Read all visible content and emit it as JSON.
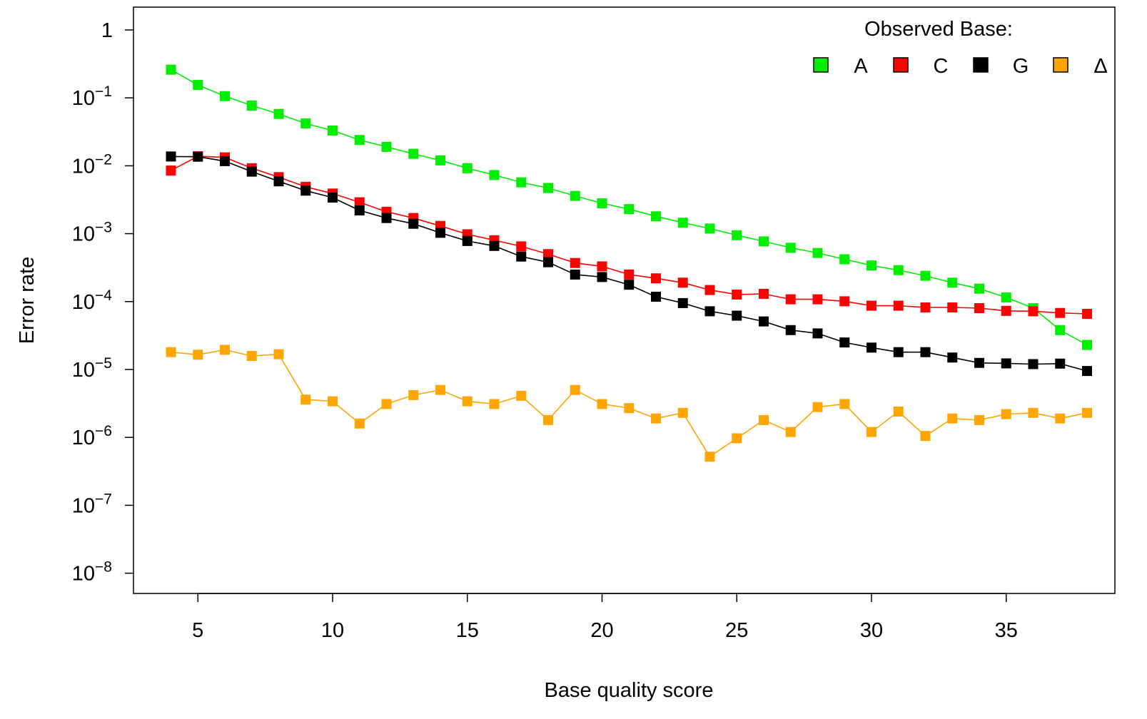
{
  "chart_data": {
    "type": "line",
    "title": "",
    "xlabel": "Base quality score",
    "ylabel": "Error rate",
    "y_scale": "log10",
    "xlim": [
      3.5,
      38.5
    ],
    "ylim": [
      1e-08,
      1
    ],
    "x_ticks": [
      5,
      10,
      15,
      20,
      25,
      30,
      35
    ],
    "y_ticks": [
      {
        "value": 1,
        "base": "1",
        "exp": ""
      },
      {
        "value": 0.1,
        "base": "10",
        "exp": "−1"
      },
      {
        "value": 0.01,
        "base": "10",
        "exp": "−2"
      },
      {
        "value": 0.001,
        "base": "10",
        "exp": "−3"
      },
      {
        "value": 0.0001,
        "base": "10",
        "exp": "−4"
      },
      {
        "value": 1e-05,
        "base": "10",
        "exp": "−5"
      },
      {
        "value": 1e-06,
        "base": "10",
        "exp": "−6"
      },
      {
        "value": 1e-07,
        "base": "10",
        "exp": "−7"
      },
      {
        "value": 1e-08,
        "base": "10",
        "exp": "−8"
      }
    ],
    "grid": false,
    "legend": {
      "title": "Observed Base:",
      "placement": "top-right",
      "orientation": "horizontal"
    },
    "x": [
      4,
      5,
      6,
      7,
      8,
      9,
      10,
      11,
      12,
      13,
      14,
      15,
      16,
      17,
      18,
      19,
      20,
      21,
      22,
      23,
      24,
      25,
      26,
      27,
      28,
      29,
      30,
      31,
      32,
      33,
      34,
      35,
      36,
      37,
      38
    ],
    "series": [
      {
        "name": "A",
        "color": "#00ee00",
        "marker": "square",
        "values": [
          0.26,
          0.155,
          0.106,
          0.077,
          0.058,
          0.042,
          0.033,
          0.024,
          0.019,
          0.015,
          0.012,
          0.0092,
          0.0073,
          0.0057,
          0.0047,
          0.0036,
          0.0028,
          0.0023,
          0.0018,
          0.00145,
          0.00119,
          0.00095,
          0.00077,
          0.00062,
          0.00052,
          0.00042,
          0.00034,
          0.00029,
          0.00024,
          0.00019,
          0.000155,
          0.000115,
          8e-05,
          3.8e-05,
          2.3e-05
        ]
      },
      {
        "name": "C",
        "color": "#ff0000",
        "marker": "square",
        "values": [
          0.0085,
          0.0138,
          0.0133,
          0.0092,
          0.0068,
          0.0049,
          0.0039,
          0.0029,
          0.0021,
          0.0017,
          0.0013,
          0.00098,
          0.0008,
          0.00065,
          0.0005,
          0.00037,
          0.00033,
          0.00025,
          0.00022,
          0.00019,
          0.000148,
          0.000127,
          0.00013,
          0.000108,
          0.000108,
          0.000101,
          8.7e-05,
          8.7e-05,
          8.2e-05,
          8.2e-05,
          8e-05,
          7.3e-05,
          7.2e-05,
          6.8e-05,
          6.6e-05
        ]
      },
      {
        "name": "G",
        "color": "#000000",
        "marker": "square",
        "values": [
          0.0137,
          0.0136,
          0.0117,
          0.0082,
          0.0059,
          0.0043,
          0.0034,
          0.0022,
          0.0017,
          0.0014,
          0.00103,
          0.00078,
          0.00066,
          0.00046,
          0.00038,
          0.00025,
          0.00023,
          0.000177,
          0.000118,
          9.5e-05,
          7.2e-05,
          6.2e-05,
          5.1e-05,
          3.8e-05,
          3.4e-05,
          2.5e-05,
          2.1e-05,
          1.8e-05,
          1.8e-05,
          1.5e-05,
          1.25e-05,
          1.23e-05,
          1.2e-05,
          1.22e-05,
          9.5e-06
        ]
      },
      {
        "name": "Δ",
        "color": "#ffa500",
        "marker": "square",
        "values": [
          1.8e-05,
          1.65e-05,
          1.95e-05,
          1.58e-05,
          1.68e-05,
          3.6e-06,
          3.4e-06,
          1.6e-06,
          3.1e-06,
          4.2e-06,
          5e-06,
          3.4e-06,
          3.1e-06,
          4.1e-06,
          1.8e-06,
          5e-06,
          3.1e-06,
          2.7e-06,
          1.9e-06,
          2.3e-06,
          5.2e-07,
          9.7e-07,
          1.8e-06,
          1.2e-06,
          2.8e-06,
          3.1e-06,
          1.2e-06,
          2.4e-06,
          1.05e-06,
          1.9e-06,
          1.8e-06,
          2.2e-06,
          2.3e-06,
          1.9e-06,
          2.3e-06
        ]
      }
    ]
  }
}
